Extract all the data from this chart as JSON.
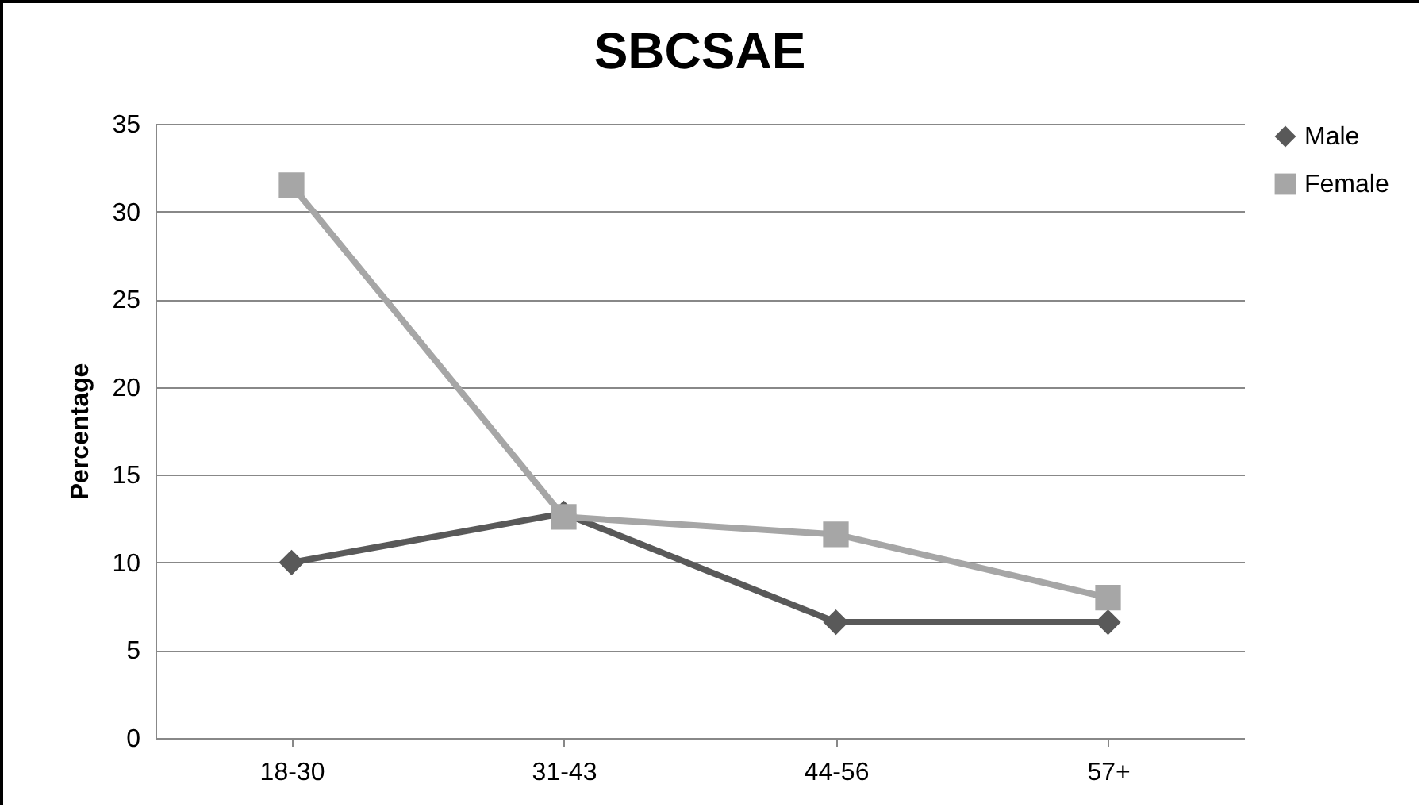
{
  "chart_data": {
    "type": "line",
    "title": "SBCSAE",
    "ylabel": "Percentage",
    "categories": [
      "18-30",
      "31-43",
      "44-56",
      "57+"
    ],
    "series": [
      {
        "name": "Male",
        "color": "#595959",
        "marker": "diamond",
        "values": [
          10,
          12.8,
          6.6,
          6.6
        ]
      },
      {
        "name": "Female",
        "color": "#a6a6a6",
        "marker": "square",
        "values": [
          31.5,
          12.6,
          11.6,
          8.0
        ]
      }
    ],
    "ylim": [
      0,
      35
    ],
    "yticks": [
      0,
      5,
      10,
      15,
      20,
      25,
      30,
      35
    ],
    "grid": "y",
    "legend": "right",
    "line_style": "solid"
  }
}
